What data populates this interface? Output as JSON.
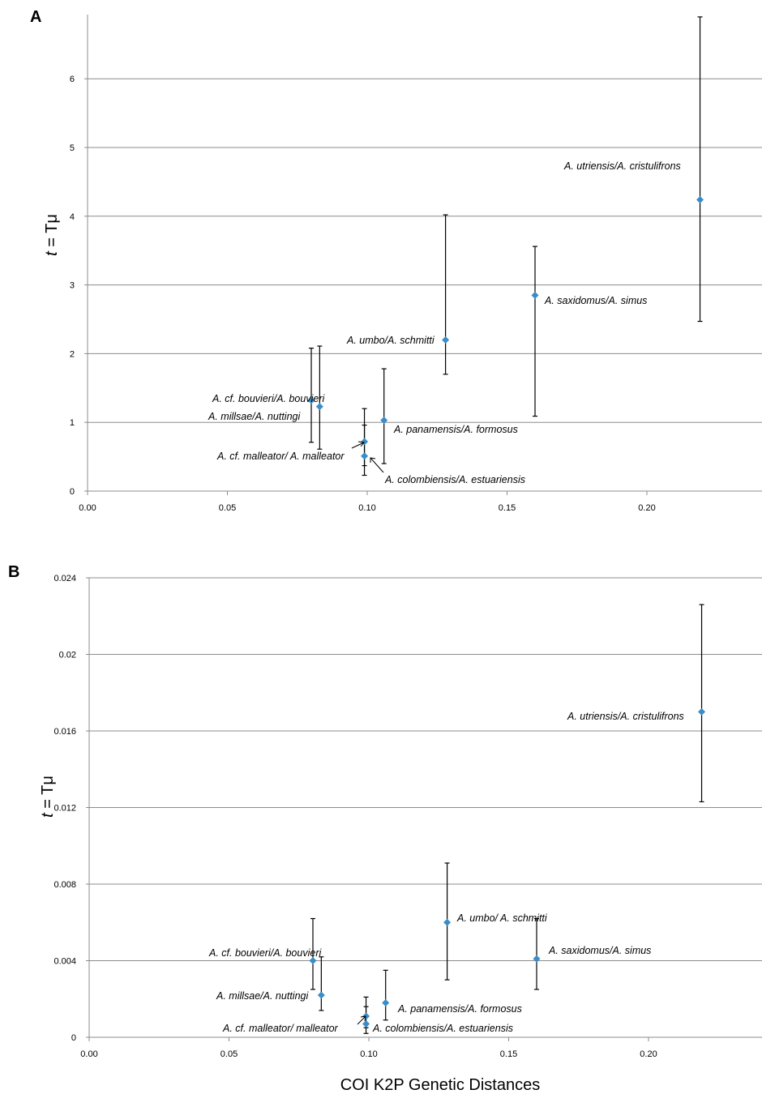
{
  "chart_data": [
    {
      "panel": "A",
      "type": "scatter",
      "ylabel": "t = Tμ",
      "ylabel_parts": [
        "t",
        " = Tμ"
      ],
      "xlabel": "",
      "xlim": [
        0,
        0.24
      ],
      "ylim": [
        0,
        6.9
      ],
      "x_ticks": [
        "0.00",
        "0.05",
        "0.10",
        "0.15",
        "0.20"
      ],
      "y_ticks": [
        "0",
        "1",
        "2",
        "3",
        "4",
        "5",
        "6"
      ],
      "grid": true,
      "marker_color": "#3a8dc8",
      "points": [
        {
          "label": "A. cf. bouvieri/A. bouvieri",
          "x": 0.08,
          "y": 1.32,
          "err_low": 0.71,
          "err_high": 2.08
        },
        {
          "label": "A. millsae/A. nuttingi",
          "x": 0.083,
          "y": 1.23,
          "err_low": 0.61,
          "err_high": 2.11
        },
        {
          "label": "A. cf. malleator/ A. malleator",
          "x": 0.099,
          "y": 0.72,
          "err_low": 0.37,
          "err_high": 1.2
        },
        {
          "label": "A. colombiensis/A. estuariensis",
          "x": 0.099,
          "y": 0.51,
          "err_low": 0.23,
          "err_high": 0.96
        },
        {
          "label": "A. panamensis/A. formosus",
          "x": 0.106,
          "y": 1.03,
          "err_low": 0.4,
          "err_high": 1.78
        },
        {
          "label": "A. umbo/A. schmitti",
          "x": 0.128,
          "y": 2.2,
          "err_low": 1.7,
          "err_high": 4.02
        },
        {
          "label": "A. saxidomus/A. simus",
          "x": 0.16,
          "y": 2.85,
          "err_low": 1.09,
          "err_high": 3.56
        },
        {
          "label": "A. utriensis/A. cristulifrons",
          "x": 0.219,
          "y": 4.24,
          "err_low": 2.47,
          "err_high": 6.9
        }
      ]
    },
    {
      "panel": "B",
      "type": "scatter",
      "ylabel": "t = Tμ",
      "ylabel_parts": [
        "t",
        " = Tμ"
      ],
      "xlabel": "COI K2P Genetic Distances",
      "xlim": [
        0,
        0.24
      ],
      "ylim": [
        0,
        0.024
      ],
      "x_ticks": [
        "0.00",
        "0.05",
        "0.10",
        "0.15",
        "0.20"
      ],
      "y_ticks": [
        "0",
        "0.004",
        "0.008",
        "0.012",
        "0.016",
        "0.02",
        "0.024"
      ],
      "grid": true,
      "marker_color": "#3a8dc8",
      "points": [
        {
          "label": "A. cf. bouvieri/A. bouvieri",
          "x": 0.08,
          "y": 0.004,
          "err_low": 0.0025,
          "err_high": 0.0062
        },
        {
          "label": "A. millsae/A. nuttingi",
          "x": 0.083,
          "y": 0.0022,
          "err_low": 0.0014,
          "err_high": 0.0042
        },
        {
          "label": "A. cf. malleator/ malleator",
          "x": 0.099,
          "y": 0.0011,
          "err_low": 0.0005,
          "err_high": 0.0021
        },
        {
          "label": "A. colombiensis/A. estuariensis",
          "x": 0.099,
          "y": 0.0007,
          "err_low": 0.0002,
          "err_high": 0.0016
        },
        {
          "label": "A. panamensis/A. formosus",
          "x": 0.106,
          "y": 0.0018,
          "err_low": 0.0009,
          "err_high": 0.0035
        },
        {
          "label": "A. umbo/ A. schmitti",
          "x": 0.128,
          "y": 0.006,
          "err_low": 0.003,
          "err_high": 0.0091
        },
        {
          "label": "A. saxidomus/A. simus",
          "x": 0.16,
          "y": 0.0041,
          "err_low": 0.0025,
          "err_high": 0.0062
        },
        {
          "label": "A. utriensis/A. cristulifrons",
          "x": 0.219,
          "y": 0.017,
          "err_low": 0.0123,
          "err_high": 0.0226
        }
      ]
    }
  ]
}
